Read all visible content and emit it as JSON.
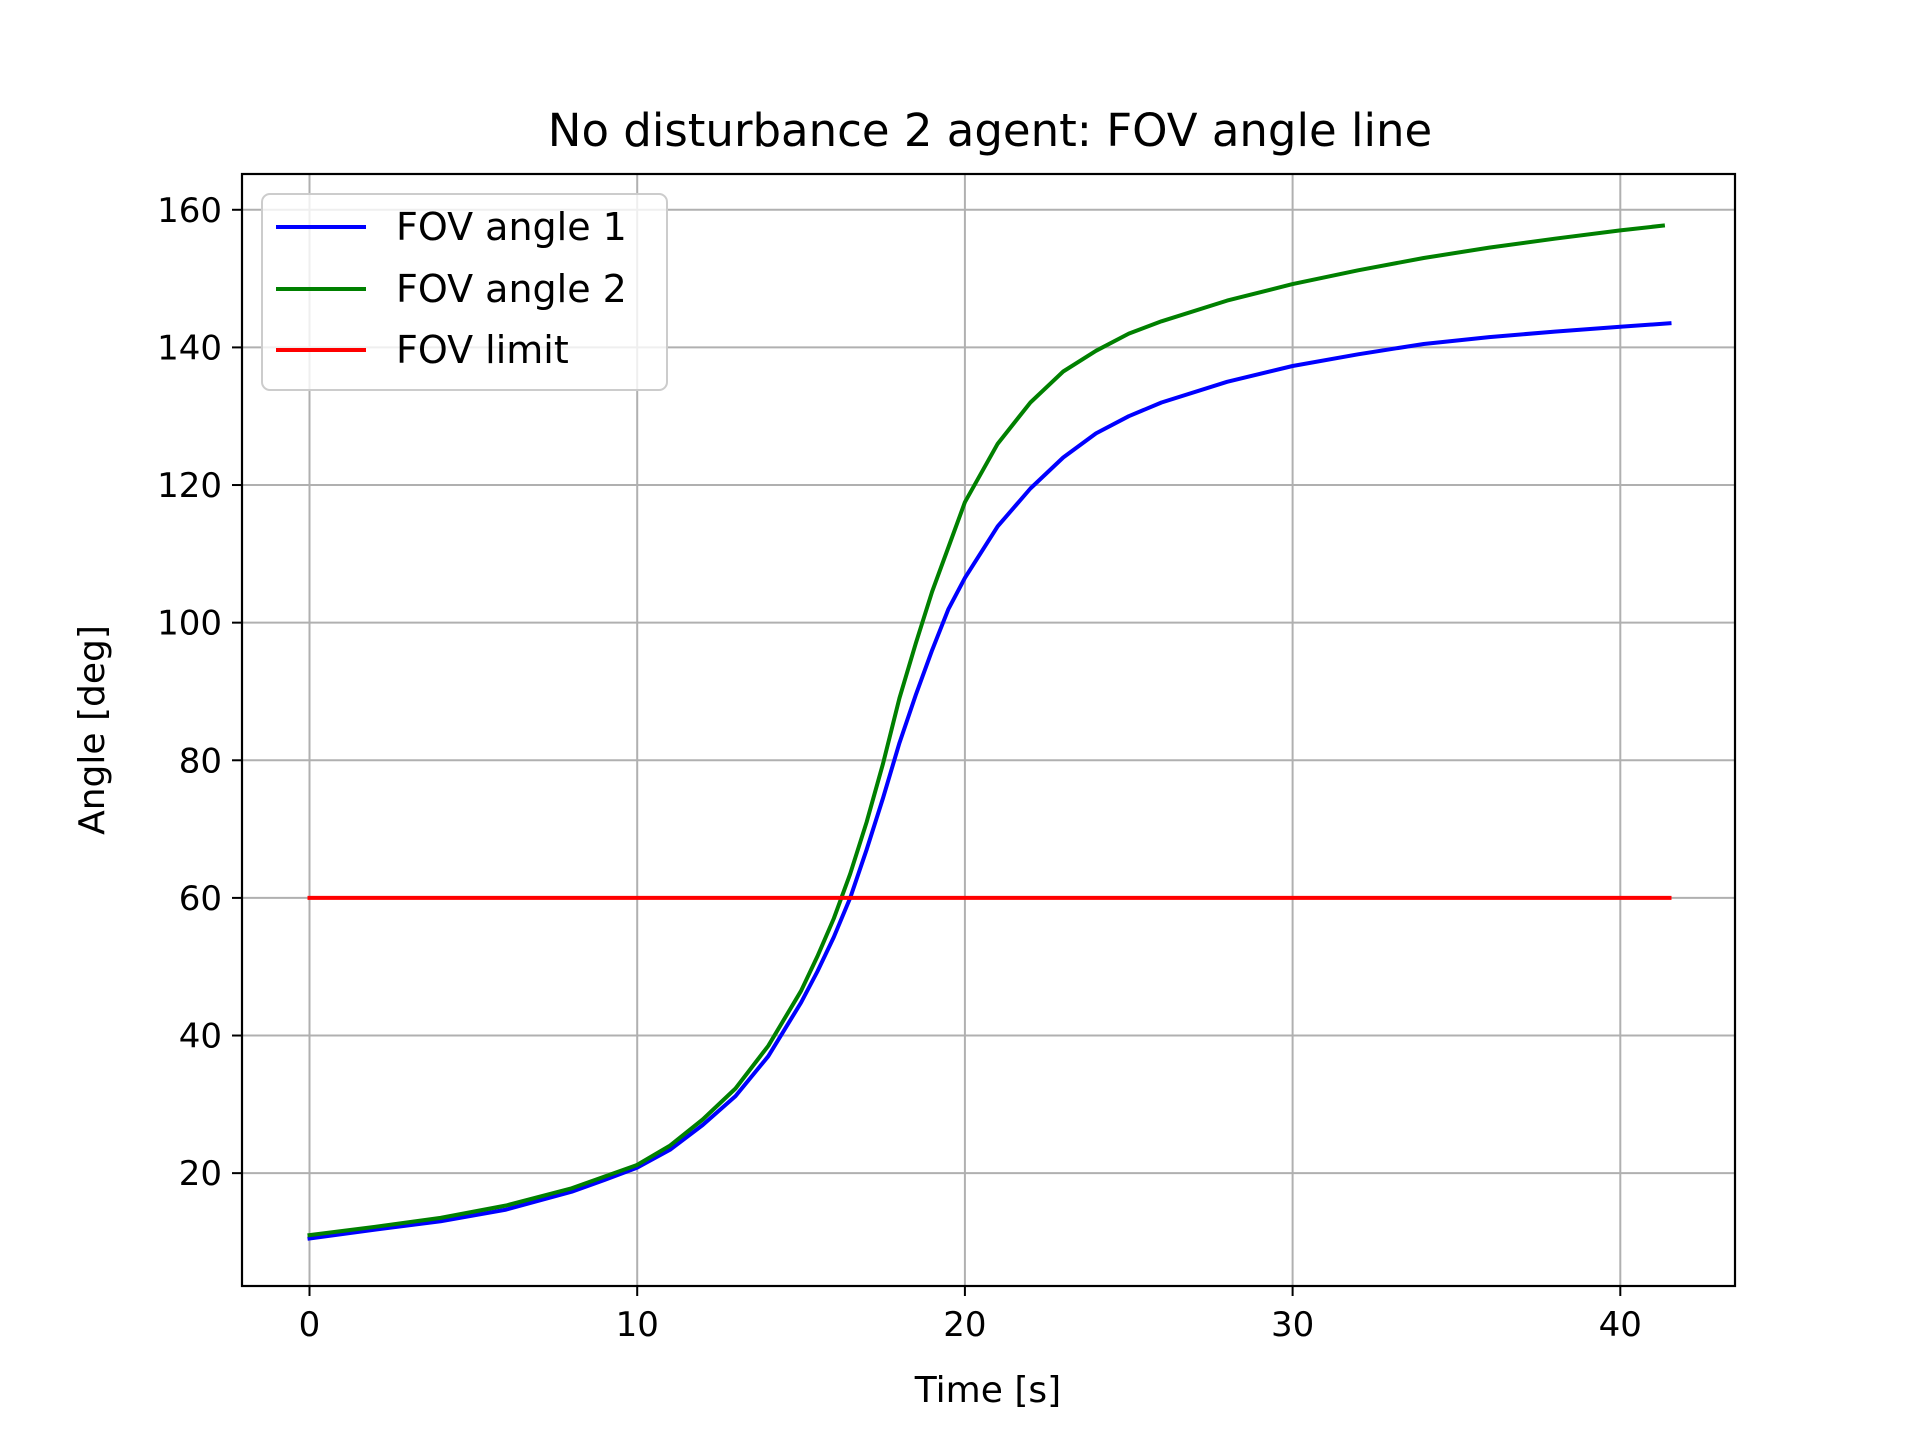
{
  "chart_data": {
    "type": "line",
    "title": "No disturbance 2 agent: FOV angle line",
    "xlabel": "Time [s]",
    "ylabel": "Angle [deg]",
    "xlim": [
      -2.06,
      43.5
    ],
    "ylim": [
      3.6,
      165.2
    ],
    "xticks": [
      0,
      10,
      20,
      30,
      40
    ],
    "yticks": [
      20,
      40,
      60,
      80,
      100,
      120,
      140,
      160
    ],
    "grid": true,
    "legend_position": "upper-left",
    "series": [
      {
        "name": "FOV angle 1",
        "color": "#0000ff",
        "x": [
          0,
          2,
          4,
          6,
          8,
          9,
          10,
          11,
          12,
          13,
          14,
          15,
          15.5,
          16,
          16.5,
          17,
          17.5,
          18,
          18.5,
          19,
          19.5,
          20,
          21,
          22,
          23,
          24,
          25,
          26,
          28,
          30,
          32,
          34,
          36,
          38,
          40,
          41.5
        ],
        "y": [
          10.5,
          11.8,
          13.0,
          14.7,
          17.3,
          19.0,
          20.8,
          23.4,
          27.0,
          31.2,
          37.0,
          44.8,
          49.3,
          54.3,
          60.0,
          67.0,
          74.5,
          82.5,
          89.5,
          96.0,
          102.0,
          106.5,
          114.0,
          119.5,
          124.0,
          127.5,
          130.0,
          132.0,
          135.0,
          137.3,
          139.0,
          140.5,
          141.5,
          142.3,
          143.0,
          143.5
        ]
      },
      {
        "name": "FOV angle 2",
        "color": "#008000",
        "x": [
          0,
          2,
          4,
          6,
          8,
          9,
          10,
          11,
          12,
          13,
          14,
          15,
          15.5,
          16,
          16.5,
          17,
          17.5,
          18,
          18.5,
          19,
          19.5,
          20,
          21,
          22,
          23,
          24,
          25,
          26,
          28,
          30,
          32,
          34,
          36,
          38,
          40,
          41.3
        ],
        "y": [
          11.0,
          12.2,
          13.5,
          15.3,
          17.8,
          19.5,
          21.2,
          24.0,
          27.8,
          32.3,
          38.5,
          46.5,
          51.5,
          57.0,
          63.5,
          71.0,
          79.5,
          89.0,
          97.0,
          104.5,
          111.0,
          117.5,
          126.0,
          132.0,
          136.5,
          139.5,
          142.0,
          143.8,
          146.8,
          149.2,
          151.2,
          153.0,
          154.5,
          155.8,
          157.0,
          157.7
        ]
      },
      {
        "name": "FOV limit",
        "color": "#ff0000",
        "x": [
          0,
          41.5
        ],
        "y": [
          60,
          60
        ]
      }
    ]
  }
}
